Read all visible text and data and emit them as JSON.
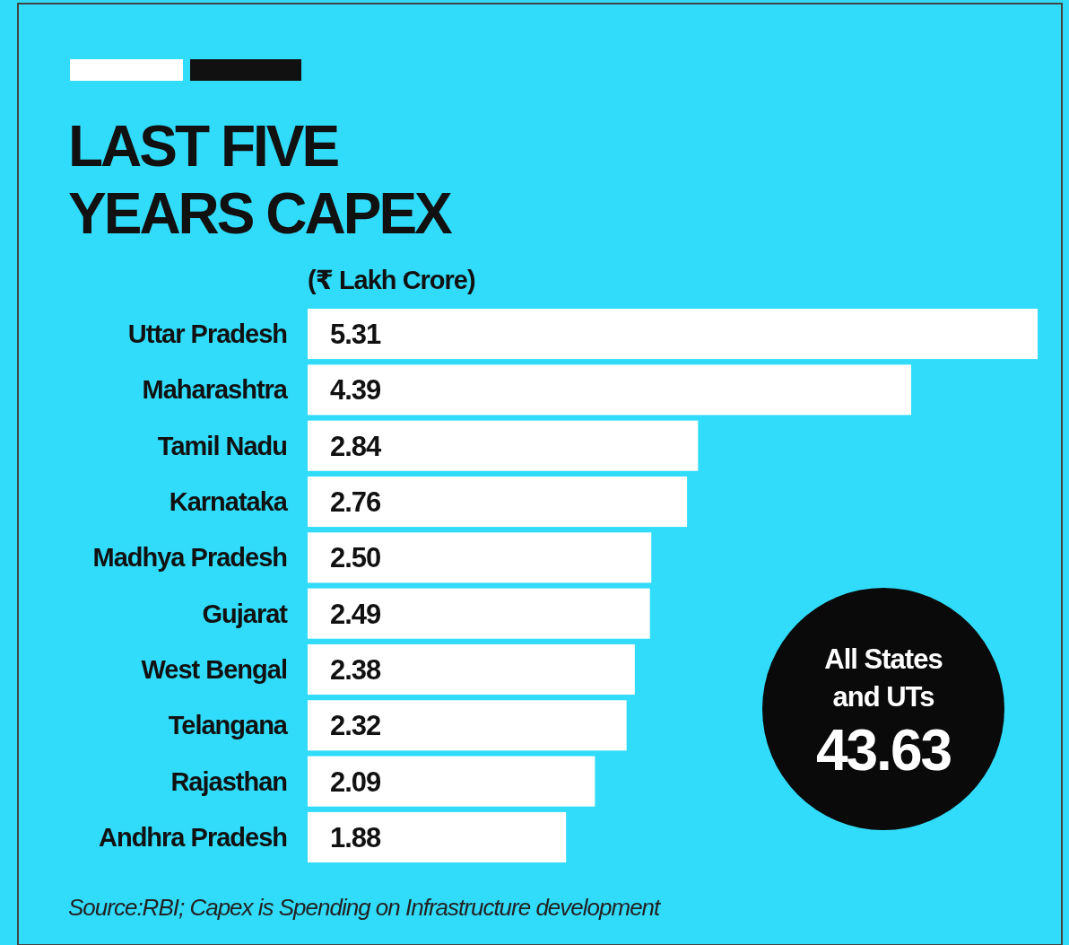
{
  "chart_data": {
    "type": "bar",
    "orientation": "horizontal",
    "title": "LAST FIVE YEARS CAPEX",
    "subtitle": "(₹ Lakh Crore)",
    "categories": [
      "Uttar Pradesh",
      "Maharashtra",
      "Tamil Nadu",
      "Karnataka",
      "Madhya Pradesh",
      "Gujarat",
      "West Bengal",
      "Telangana",
      "Rajasthan",
      "Andhra Pradesh"
    ],
    "values": [
      5.31,
      4.39,
      2.84,
      2.76,
      2.5,
      2.49,
      2.38,
      2.32,
      2.09,
      1.88
    ],
    "value_labels": [
      "5.31",
      "4.39",
      "2.84",
      "2.76",
      "2.50",
      "2.49",
      "2.38",
      "2.32",
      "2.09",
      "1.88"
    ],
    "color": "#ffffff",
    "annotations": [
      "All States and UTs",
      "43.63",
      "Source:RBI; Capex is Spending on Infrastructure development"
    ]
  }
}
